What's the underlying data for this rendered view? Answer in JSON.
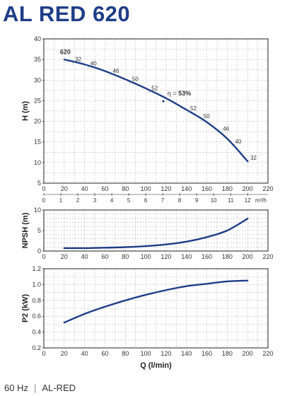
{
  "title": "AL RED 620",
  "footer": {
    "frequency": "60 Hz",
    "model": "AL-RED"
  },
  "colors": {
    "title": "#1f3d87",
    "curve": "#1f3d87",
    "grid": "#aaaaaa",
    "frame": "#222222",
    "eff_mark": "#4a9a6a"
  },
  "chart_data": [
    {
      "id": "head",
      "type": "line",
      "ylabel": "H (m)",
      "xlim": [
        0,
        220
      ],
      "ylim": [
        5,
        40
      ],
      "xticks": [
        0,
        20,
        40,
        60,
        80,
        100,
        120,
        140,
        160,
        180,
        200,
        220
      ],
      "yticks": [
        5,
        10,
        15,
        20,
        25,
        30,
        35,
        40
      ],
      "secondary_xaxis": {
        "label": "m³/h",
        "ticks": [
          0,
          1,
          2,
          3,
          4,
          5,
          6,
          7,
          8,
          9,
          10,
          11,
          12
        ]
      },
      "grid": true,
      "curve_label": "620",
      "series": [
        {
          "x": [
            20,
            40,
            60,
            80,
            100,
            120,
            140,
            160,
            180,
            200
          ],
          "y": [
            35.0,
            33.8,
            32.2,
            30.2,
            28.0,
            25.6,
            22.8,
            19.8,
            15.8,
            10.3
          ]
        }
      ],
      "efficiency_labels": [
        {
          "text": "32",
          "x": 30,
          "y": 34.4
        },
        {
          "text": "40",
          "x": 45,
          "y": 33.4
        },
        {
          "text": "46",
          "x": 67,
          "y": 31.6
        },
        {
          "text": "50",
          "x": 86,
          "y": 29.6
        },
        {
          "text": "52",
          "x": 105,
          "y": 27.4
        },
        {
          "text": "52",
          "x": 143,
          "y": 22.5
        },
        {
          "text": "50",
          "x": 156,
          "y": 20.6
        },
        {
          "text": "46",
          "x": 175,
          "y": 17.5
        },
        {
          "text": "40",
          "x": 187,
          "y": 14.4
        },
        {
          "text": "32",
          "x": 202,
          "y": 10.5
        }
      ],
      "best_efficiency": {
        "label": "η = ",
        "value": "53%",
        "x": 120,
        "y": 25.9
      }
    },
    {
      "id": "npsh",
      "type": "line",
      "ylabel": "NPSH (m)",
      "xlim": [
        0,
        220
      ],
      "ylim": [
        0,
        10
      ],
      "xticks": [
        0,
        20,
        40,
        60,
        80,
        100,
        120,
        140,
        160,
        180,
        200,
        220
      ],
      "yticks": [
        0,
        5,
        10
      ],
      "grid": true,
      "series": [
        {
          "x": [
            20,
            40,
            60,
            80,
            100,
            120,
            140,
            160,
            180,
            200
          ],
          "y": [
            0.7,
            0.7,
            0.8,
            0.95,
            1.2,
            1.6,
            2.3,
            3.4,
            5.0,
            7.9
          ]
        }
      ]
    },
    {
      "id": "power",
      "type": "line",
      "ylabel": "P2 (kW)",
      "xlabel": "Q (l/min)",
      "xlim": [
        0,
        220
      ],
      "ylim": [
        0.2,
        1.2
      ],
      "xticks": [
        0,
        20,
        40,
        60,
        80,
        100,
        120,
        140,
        160,
        180,
        200,
        220
      ],
      "yticks": [
        0.2,
        0.4,
        0.6,
        0.8,
        1.0,
        1.2
      ],
      "grid": true,
      "series": [
        {
          "x": [
            20,
            40,
            60,
            80,
            100,
            120,
            140,
            160,
            180,
            200
          ],
          "y": [
            0.52,
            0.63,
            0.72,
            0.8,
            0.87,
            0.93,
            0.98,
            1.01,
            1.04,
            1.05
          ]
        }
      ]
    }
  ]
}
